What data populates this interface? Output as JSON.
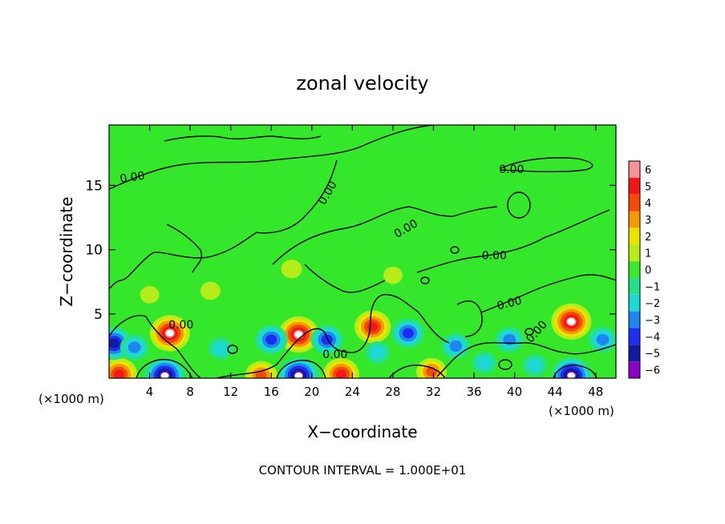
{
  "chart_data": {
    "type": "heatmap",
    "title": "zonal velocity",
    "xlabel": "X−coordinate",
    "ylabel": "Z−coordinate",
    "x_unit_left": "(×1000 m)",
    "x_unit_right": "(×1000 m)",
    "footer": "CONTOUR INTERVAL = 1.000E+01",
    "xlim": [
      0,
      50
    ],
    "ylim": [
      0,
      19.7
    ],
    "x_ticks": [
      4,
      8,
      12,
      16,
      20,
      24,
      28,
      32,
      36,
      40,
      44,
      48
    ],
    "x_tick_labels": [
      "4",
      "8",
      "12",
      "16",
      "20",
      "24",
      "28",
      "32",
      "36",
      "40",
      "44",
      "48"
    ],
    "y_ticks": [
      5,
      10,
      15
    ],
    "y_tick_labels": [
      "5",
      "10",
      "15"
    ],
    "colorbar": {
      "levels": [
        6,
        5,
        4,
        3,
        2,
        1,
        0,
        -1,
        -2,
        -3,
        -4,
        -5,
        -6
      ],
      "labels": [
        "6",
        "5",
        "4",
        "3",
        "2",
        "1",
        "0",
        "−1",
        "−2",
        "−3",
        "−4",
        "−5",
        "−6"
      ],
      "colors": [
        "#f49494",
        "#f21818",
        "#f24a0a",
        "#f39a00",
        "#e8e400",
        "#b6ec1c",
        "#3ce82c",
        "#26e089",
        "#1ed8d6",
        "#1f86f0",
        "#1e2ef0",
        "#101c9c",
        "#8b00c4"
      ]
    },
    "contour_labels": [
      {
        "text": "0.00",
        "x": 2.3,
        "y": 15.6,
        "rotate": -8
      },
      {
        "text": "0.00",
        "x": 21.6,
        "y": 14.4,
        "rotate": -60
      },
      {
        "text": "0.00",
        "x": 39.7,
        "y": 16.2,
        "rotate": 0
      },
      {
        "text": "0.00",
        "x": 29.3,
        "y": 11.6,
        "rotate": -30
      },
      {
        "text": "0.00",
        "x": 38.0,
        "y": 9.5,
        "rotate": 0
      },
      {
        "text": "0.00",
        "x": 39.5,
        "y": 5.8,
        "rotate": -14
      },
      {
        "text": "0.00",
        "x": 42.2,
        "y": 3.6,
        "rotate": -48
      },
      {
        "text": "0.00",
        "x": 7.1,
        "y": 4.1,
        "rotate": 0
      },
      {
        "text": "0.00",
        "x": 22.3,
        "y": 1.8,
        "rotate": 0
      }
    ],
    "features": [
      {
        "x": 6.0,
        "y": 3.5,
        "v": 6.0
      },
      {
        "x": 18.7,
        "y": 3.4,
        "v": 6.0
      },
      {
        "x": 26.0,
        "y": 4.0,
        "v": 5.0
      },
      {
        "x": 45.6,
        "y": 4.4,
        "v": 6.0
      },
      {
        "x": 22.9,
        "y": 0.3,
        "v": 5.0
      },
      {
        "x": 1.0,
        "y": 0.3,
        "v": 5.0
      },
      {
        "x": 15.0,
        "y": 0.2,
        "v": 4.0
      },
      {
        "x": 31.8,
        "y": 0.5,
        "v": 3.5
      },
      {
        "x": 0.5,
        "y": 2.7,
        "v": -5.0
      },
      {
        "x": 2.5,
        "y": 2.4,
        "v": -3.0
      },
      {
        "x": 16.0,
        "y": 3.0,
        "v": -4.0
      },
      {
        "x": 21.5,
        "y": 3.0,
        "v": -4.0
      },
      {
        "x": 29.5,
        "y": 3.5,
        "v": -4.0
      },
      {
        "x": 34.2,
        "y": 2.5,
        "v": -3.0
      },
      {
        "x": 39.5,
        "y": 3.0,
        "v": -3.0
      },
      {
        "x": 48.7,
        "y": 3.0,
        "v": -3.0
      },
      {
        "x": 5.5,
        "y": 0.2,
        "v": -6.0
      },
      {
        "x": 18.7,
        "y": 0.2,
        "v": -6.0
      },
      {
        "x": 45.6,
        "y": 0.2,
        "v": -6.0
      },
      {
        "x": 37.0,
        "y": 1.2,
        "v": -2.0
      },
      {
        "x": 11.0,
        "y": 2.3,
        "v": -2.0
      },
      {
        "x": 26.5,
        "y": 2.0,
        "v": -2.0
      },
      {
        "x": 42.0,
        "y": 1.0,
        "v": -2.0
      },
      {
        "x": 10.0,
        "y": 6.8,
        "v": 0.8
      },
      {
        "x": 18.0,
        "y": 8.5,
        "v": 1.0
      },
      {
        "x": 4.0,
        "y": 6.5,
        "v": 0.6
      },
      {
        "x": 28.0,
        "y": 8.0,
        "v": 0.6
      }
    ]
  }
}
